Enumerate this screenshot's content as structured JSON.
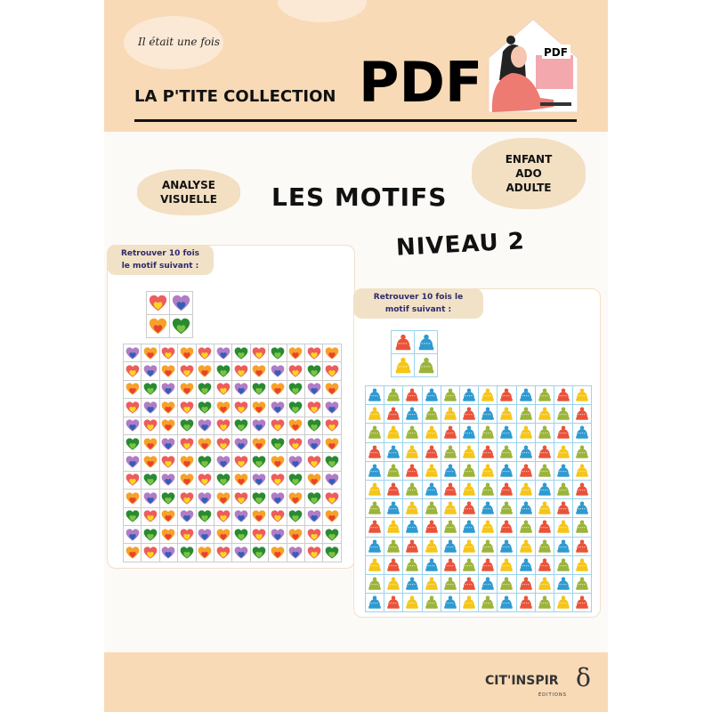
{
  "header": {
    "tagline": "Il était une fois",
    "collection": "LA P'TITE COLLECTION",
    "pdf": "PDF",
    "illustration_badge": "PDF"
  },
  "tags": {
    "skill": [
      "ANALYSE",
      "VISUELLE"
    ],
    "audience": [
      "ENFANT",
      "ADO",
      "ADULTE"
    ]
  },
  "title": "LES MOTIFS",
  "level": "NIVEAU 2",
  "colors": {
    "band": "#f8dab6",
    "tag": "#f3dfc2",
    "instruction_text": "#2d2b6b"
  },
  "exercise_hearts": {
    "instruction": "Retrouver 10 fois le motif suivant :",
    "motif": [
      "RP",
      "OG"
    ],
    "grid": [
      "PORORPGRGORO",
      "RPOROGROPRGR",
      "OGPOGRPGOGPO",
      "RPORGOROPGRP",
      "PROGPRGPROGR",
      "GOPRORPOGRPO",
      "POROGPRGOPRG",
      "RGPORGOPRGOP",
      "OPGRPORGPOGR",
      "GROPGRPORGPO",
      "PGORPOGRPORG",
      "ORPGORPGOPRG"
    ]
  },
  "exercise_hats": {
    "instruction": "Retrouver 10 fois le motif suivant :",
    "motif": [
      "RB",
      "YG"
    ],
    "grid": [
      "BGRBGBYRBGRY",
      "YRBGYRBYGYGR",
      "GYGYRBGBYGRB",
      "RBYRGYRGBRYG",
      "BGRYBGYBRGBY",
      "YRGBRYGRYBGR",
      "GBYGYRBGBYRB",
      "RYBRGBYRGRYG",
      "BGRYBYGBYGBR",
      "YRGBRGRYBRGY",
      "GYBYGRBGRYBG",
      "BRYGBYGBRGYR"
    ]
  },
  "footer": {
    "brand": "CIT'INSPIR",
    "sub": "ÉDITIONS"
  }
}
